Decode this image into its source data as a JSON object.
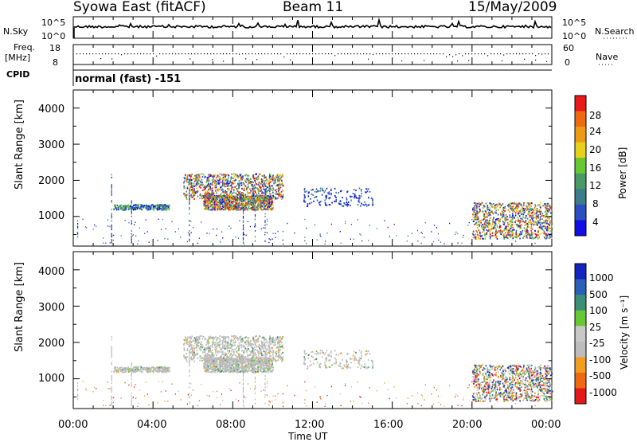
{
  "header": {
    "station": "Syowa East (fitACF)",
    "beam": "Beam 11",
    "date": "15/May/2009"
  },
  "top_panels": {
    "nsky_label": "N.Sky",
    "nsky_ticks": [
      "10^5",
      "10^0"
    ],
    "nsearch_label": "N.Search",
    "nsearch_ticks": [
      "10^5",
      "10^0"
    ],
    "freq_label_1": "Freq.",
    "freq_label_2": "[MHz]",
    "freq_ticks": [
      "18",
      "8"
    ],
    "nave_label": "Nave",
    "nave_ticks": [
      "60",
      "0"
    ],
    "cpid_label": "CPID",
    "cpid_value": "normal (fast) -151"
  },
  "colors": {
    "power_scale": [
      "#1010e6",
      "#2a4fc0",
      "#3b7d8a",
      "#4a9a66",
      "#66c833",
      "#e6d21a",
      "#ee9a15",
      "#ee6a10",
      "#e81a1a"
    ],
    "velocity_scale": [
      "#e41a1a",
      "#ee6a10",
      "#f19d20",
      "#bdbdbd",
      "#c8c8c8",
      "#66c833",
      "#3a8f76",
      "#2a60b8",
      "#1424c0"
    ],
    "ground_scatter": "#bbbbbb"
  },
  "chart_data": [
    {
      "type": "heatmap",
      "title": "Power",
      "ylabel": "Slant Range [km]",
      "xlabel": "Time UT",
      "x_ticks": [
        "00:00",
        "04:00",
        "08:00",
        "12:00",
        "16:00",
        "20:00",
        "00:00"
      ],
      "y_ticks": [
        "1000",
        "2000",
        "3000",
        "4000"
      ],
      "xlim_hours": [
        0,
        24
      ],
      "ylim_km": [
        180,
        4500
      ],
      "colorbar_label": "Power [dB]",
      "colorbar_ticks": [
        "4",
        "8",
        "12",
        "16",
        "20",
        "24",
        "28"
      ],
      "colorbar_range": [
        0,
        30
      ],
      "echo_regions": [
        {
          "t0": 5.5,
          "t1": 10.5,
          "r0": 1500,
          "r1": 2200,
          "level": "strong"
        },
        {
          "t0": 6.5,
          "t1": 10.0,
          "r0": 1200,
          "r1": 1600,
          "level": "strong"
        },
        {
          "t0": 2.0,
          "t1": 4.8,
          "r0": 1200,
          "r1": 1350,
          "level": "medium"
        },
        {
          "t0": 20.0,
          "t1": 24.0,
          "r0": 400,
          "r1": 1400,
          "level": "strong"
        },
        {
          "t0": 11.5,
          "t1": 15.0,
          "r0": 1300,
          "r1": 1800,
          "level": "weak"
        }
      ]
    },
    {
      "type": "heatmap",
      "title": "Velocity",
      "ylabel": "Slant Range [km]",
      "xlabel": "Time UT",
      "x_ticks": [
        "00:00",
        "04:00",
        "08:00",
        "12:00",
        "16:00",
        "20:00",
        "00:00"
      ],
      "y_ticks": [
        "1000",
        "2000",
        "3000",
        "4000"
      ],
      "xlim_hours": [
        0,
        24
      ],
      "ylim_km": [
        180,
        4500
      ],
      "colorbar_label": "Velocity [m s⁻¹]",
      "colorbar_ticks": [
        "1000",
        "500",
        "100",
        "25",
        "-25",
        "-100",
        "-500",
        "-1000"
      ],
      "colorbar_range": [
        -1500,
        1500
      ]
    }
  ]
}
